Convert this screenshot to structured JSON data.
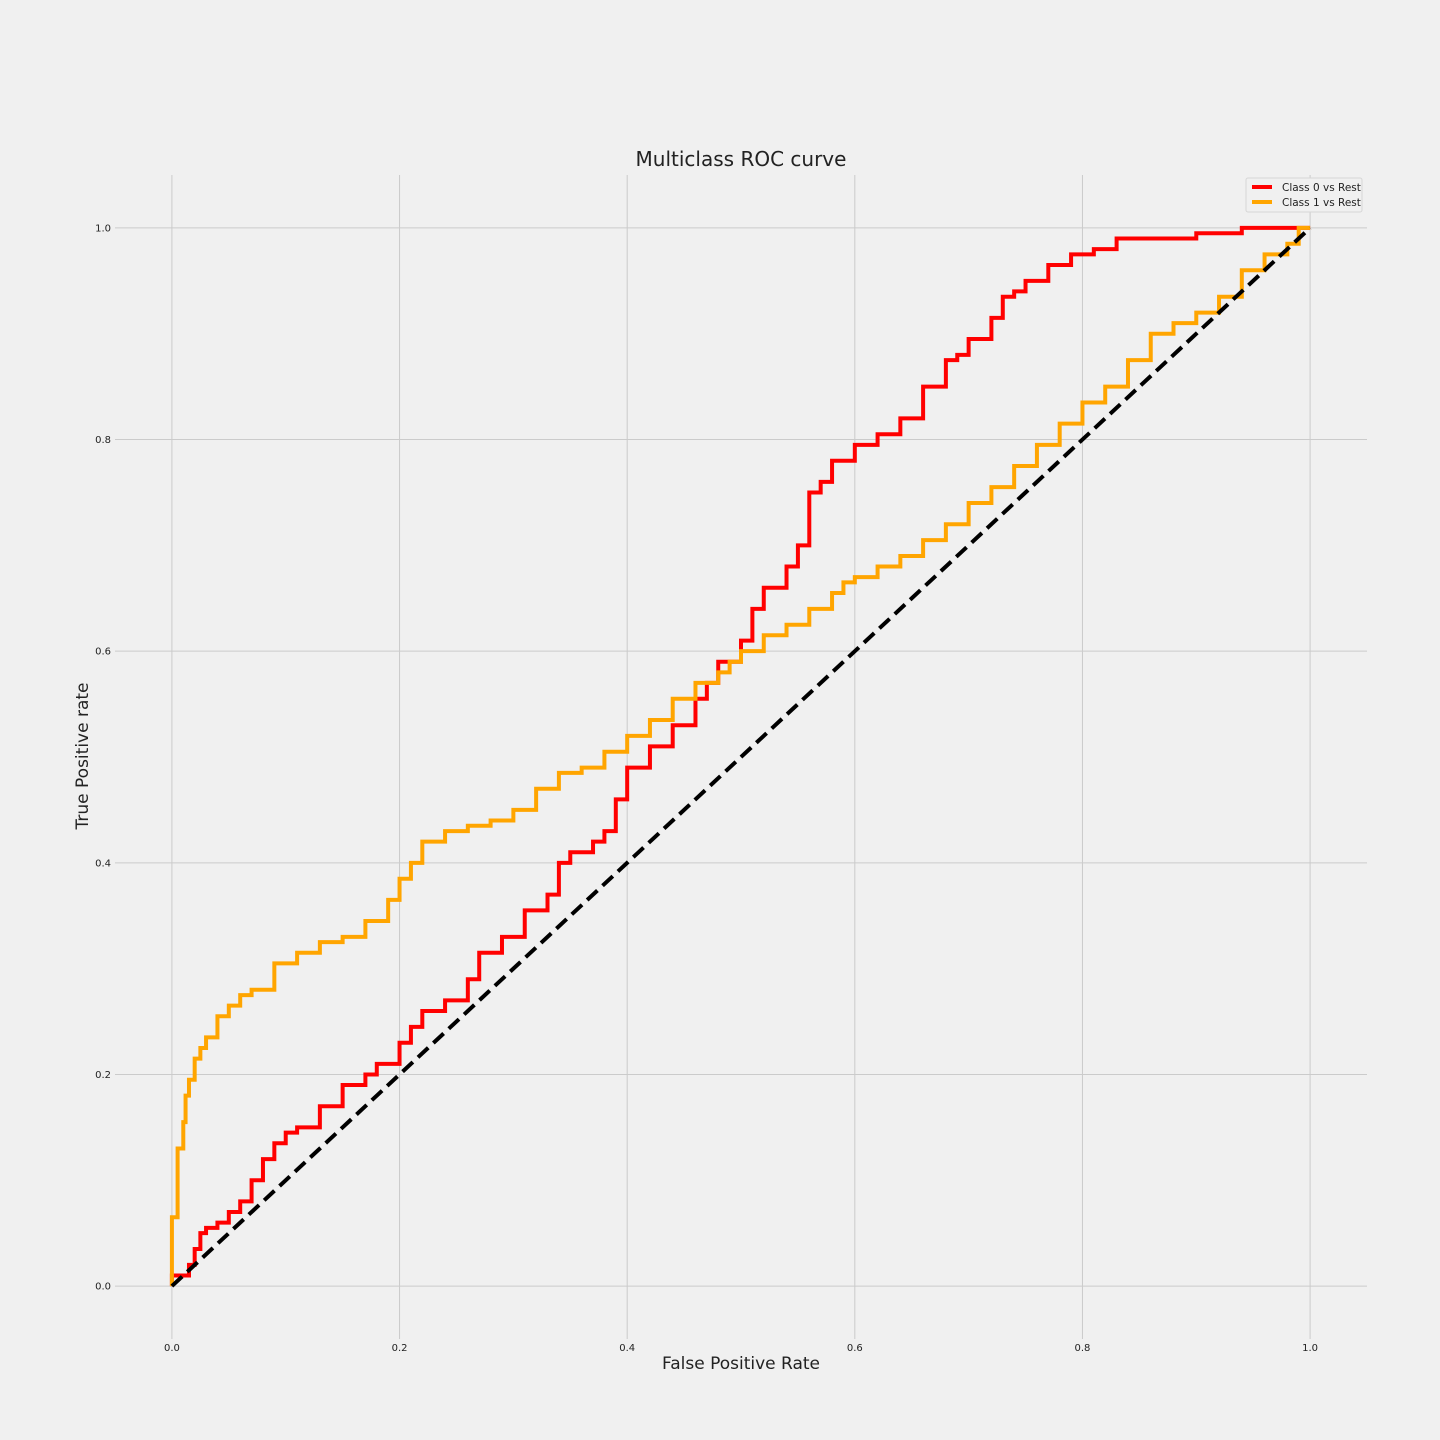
{
  "chart_data": {
    "type": "line",
    "title": "Multiclass ROC curve",
    "xlabel": "False Positive Rate",
    "ylabel": "True Positive rate",
    "xlim": [
      -0.05,
      1.05
    ],
    "ylim": [
      -0.05,
      1.05
    ],
    "xticks": [
      0.0,
      0.2,
      0.4,
      0.6,
      0.8,
      1.0
    ],
    "yticks": [
      0.0,
      0.2,
      0.4,
      0.6,
      0.8,
      1.0
    ],
    "grid": true,
    "legend_position": "top-right",
    "series": [
      {
        "name": "Class 0 vs Rest",
        "color": "#ff0000",
        "x": [
          0,
          0,
          0.015,
          0.02,
          0.025,
          0.03,
          0.04,
          0.05,
          0.06,
          0.07,
          0.08,
          0.09,
          0.1,
          0.11,
          0.13,
          0.15,
          0.17,
          0.18,
          0.2,
          0.21,
          0.22,
          0.24,
          0.26,
          0.27,
          0.29,
          0.31,
          0.33,
          0.34,
          0.35,
          0.37,
          0.38,
          0.39,
          0.4,
          0.42,
          0.44,
          0.46,
          0.47,
          0.48,
          0.5,
          0.51,
          0.52,
          0.54,
          0.55,
          0.56,
          0.57,
          0.58,
          0.6,
          0.62,
          0.64,
          0.66,
          0.68,
          0.69,
          0.7,
          0.72,
          0.73,
          0.74,
          0.75,
          0.77,
          0.79,
          0.81,
          0.83,
          0.86,
          0.9,
          0.94,
          0.96,
          0.98,
          1.0
        ],
        "y": [
          0,
          0.01,
          0.01,
          0.02,
          0.035,
          0.05,
          0.055,
          0.06,
          0.07,
          0.08,
          0.1,
          0.12,
          0.135,
          0.145,
          0.15,
          0.17,
          0.19,
          0.2,
          0.21,
          0.23,
          0.245,
          0.26,
          0.27,
          0.29,
          0.315,
          0.33,
          0.355,
          0.37,
          0.4,
          0.41,
          0.42,
          0.43,
          0.46,
          0.49,
          0.51,
          0.53,
          0.555,
          0.57,
          0.59,
          0.61,
          0.64,
          0.66,
          0.68,
          0.7,
          0.75,
          0.76,
          0.78,
          0.795,
          0.805,
          0.82,
          0.85,
          0.875,
          0.88,
          0.895,
          0.915,
          0.935,
          0.94,
          0.95,
          0.965,
          0.975,
          0.98,
          0.99,
          0.99,
          0.995,
          1.0,
          1.0,
          1.0
        ]
      },
      {
        "name": "Class 1 vs Rest",
        "color": "#ffa500",
        "x": [
          0,
          0,
          0.005,
          0.01,
          0.012,
          0.015,
          0.02,
          0.025,
          0.03,
          0.04,
          0.05,
          0.06,
          0.07,
          0.09,
          0.11,
          0.13,
          0.15,
          0.17,
          0.19,
          0.2,
          0.21,
          0.22,
          0.24,
          0.26,
          0.28,
          0.3,
          0.32,
          0.34,
          0.36,
          0.38,
          0.4,
          0.42,
          0.44,
          0.46,
          0.48,
          0.49,
          0.5,
          0.52,
          0.54,
          0.56,
          0.58,
          0.59,
          0.6,
          0.62,
          0.64,
          0.66,
          0.68,
          0.7,
          0.72,
          0.74,
          0.76,
          0.78,
          0.8,
          0.82,
          0.84,
          0.86,
          0.88,
          0.9,
          0.92,
          0.94,
          0.96,
          0.98,
          0.99,
          1.0
        ],
        "y": [
          0,
          0.04,
          0.065,
          0.13,
          0.155,
          0.18,
          0.195,
          0.215,
          0.225,
          0.235,
          0.255,
          0.265,
          0.275,
          0.28,
          0.305,
          0.315,
          0.325,
          0.33,
          0.345,
          0.365,
          0.385,
          0.4,
          0.42,
          0.43,
          0.435,
          0.44,
          0.45,
          0.47,
          0.485,
          0.49,
          0.505,
          0.52,
          0.535,
          0.555,
          0.57,
          0.58,
          0.59,
          0.6,
          0.615,
          0.625,
          0.64,
          0.655,
          0.665,
          0.67,
          0.68,
          0.69,
          0.705,
          0.72,
          0.74,
          0.755,
          0.775,
          0.795,
          0.815,
          0.835,
          0.85,
          0.875,
          0.9,
          0.91,
          0.92,
          0.935,
          0.96,
          0.975,
          0.985,
          1.0
        ]
      }
    ],
    "reference_line": {
      "x": [
        0,
        1
      ],
      "y": [
        0,
        1
      ],
      "color": "#000000",
      "style": "dashed"
    }
  }
}
